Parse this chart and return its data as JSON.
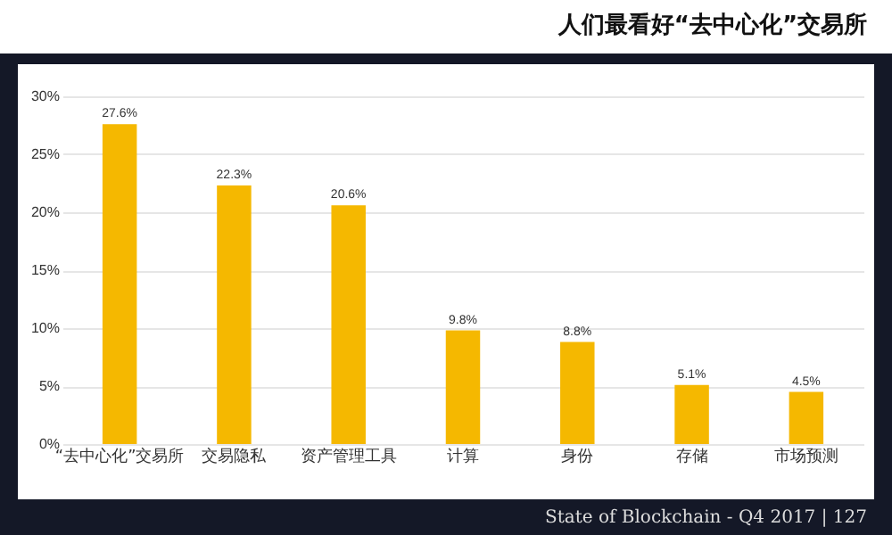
{
  "chart_data": {
    "type": "bar",
    "title": "人们最看好“去中心化”交易所",
    "categories": [
      "“去中心化”交易所",
      "交易隐私",
      "资产管理工具",
      "计算",
      "身份",
      "存储",
      "市场预测"
    ],
    "values": [
      27.6,
      22.3,
      20.6,
      9.8,
      8.8,
      5.1,
      4.5
    ],
    "color": "#f5b800",
    "ylim": [
      0,
      30
    ],
    "yticks": [
      {
        "value": 0,
        "label": "0%"
      },
      {
        "value": 5,
        "label": "5%"
      },
      {
        "value": 10,
        "label": "10%"
      },
      {
        "value": 15,
        "label": "15%"
      },
      {
        "value": 20,
        "label": "20%"
      },
      {
        "value": 25,
        "label": "25%"
      },
      {
        "value": 30,
        "label": "30%"
      }
    ],
    "grid": "y",
    "value_labels": [
      "27.6%",
      "22.3%",
      "20.6%",
      "9.8%",
      "8.8%",
      "5.1%",
      "4.5%"
    ],
    "annotations": [
      "State of Blockchain - Q4 2017 | 127"
    ]
  }
}
